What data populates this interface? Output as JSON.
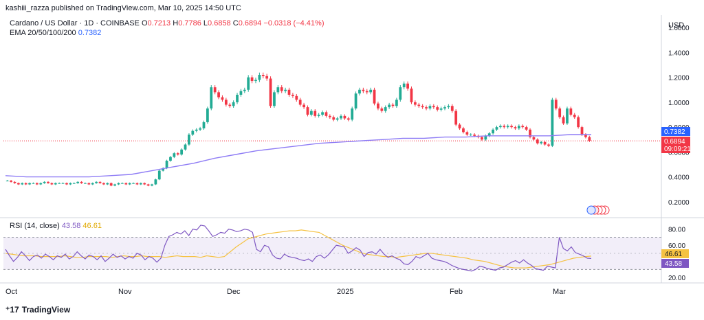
{
  "publisher": "kashiii_razza published on TradingView.com, Mar 10, 2025 14:50 UTC",
  "header": {
    "symbol": "Cardano / US Dollar · 1D · COINBASE",
    "o_label": "O",
    "o": "0.7213",
    "h_label": "H",
    "h": "0.7786",
    "l_label": "L",
    "l": "0.6858",
    "c_label": "C",
    "c": "0.6894",
    "change": "−0.0318 (−4.41%)"
  },
  "ema_legend": {
    "label": "EMA 20/50/100/200",
    "value": "0.7382"
  },
  "rsi_legend": {
    "label": "RSI (14, close)",
    "rsi": "43.58",
    "ma": "46.61"
  },
  "currency": "USD",
  "price_badges": {
    "ema": "0.7382",
    "last": "0.6894",
    "countdown": "09:09:21"
  },
  "rsi_badges": {
    "ma": "46.61",
    "rsi": "43.58"
  },
  "footer": {
    "brand": "TradingView"
  },
  "colors": {
    "up": "#22ab94",
    "down": "#f23645",
    "ema": "#8e7cf5",
    "rsi": "#7e57c2",
    "rsi_ma": "#f5c242",
    "band": "#ede7f6"
  },
  "chart_data": [
    {
      "type": "candlestick",
      "title": "Cardano / US Dollar · 1D · COINBASE",
      "ylabel": "USD",
      "y_ticks": [
        0.2,
        0.4,
        0.6,
        0.8,
        1.0,
        1.2,
        1.4,
        1.6
      ],
      "y_tick_labels": [
        "0.2000",
        "0.4000",
        "0.6000",
        "0.8000",
        "1.0000",
        "1.2000",
        "1.4000",
        "1.6000"
      ],
      "ylim": [
        0.1,
        1.7
      ],
      "x_ticks": [
        "Oct",
        "Nov",
        "Dec",
        "2025",
        "Feb",
        "Mar"
      ],
      "close_series": [
        0.37,
        0.36,
        0.35,
        0.34,
        0.35,
        0.34,
        0.35,
        0.35,
        0.34,
        0.35,
        0.36,
        0.35,
        0.34,
        0.35,
        0.35,
        0.35,
        0.34,
        0.35,
        0.35,
        0.36,
        0.35,
        0.35,
        0.34,
        0.35,
        0.36,
        0.35,
        0.34,
        0.35,
        0.33,
        0.34,
        0.35,
        0.35,
        0.34,
        0.35,
        0.35,
        0.34,
        0.35,
        0.34,
        0.33,
        0.34,
        0.38,
        0.45,
        0.47,
        0.53,
        0.56,
        0.59,
        0.58,
        0.62,
        0.66,
        0.74,
        0.77,
        0.78,
        0.79,
        0.84,
        0.95,
        1.12,
        1.08,
        1.04,
        1.02,
        0.98,
        0.97,
        1.0,
        1.06,
        1.09,
        1.1,
        1.2,
        1.17,
        1.18,
        1.22,
        1.21,
        1.19,
        0.97,
        1.08,
        1.12,
        1.09,
        1.1,
        1.06,
        1.05,
        1.02,
        0.98,
        0.96,
        0.9,
        0.93,
        0.89,
        0.9,
        0.92,
        0.89,
        0.88,
        0.86,
        0.87,
        0.89,
        0.87,
        0.86,
        0.95,
        1.07,
        1.1,
        1.09,
        1.08,
        1.1,
        0.99,
        0.95,
        0.93,
        0.96,
        0.98,
        0.97,
        1.02,
        1.12,
        1.15,
        1.11,
        1.0,
        0.98,
        0.97,
        0.96,
        0.95,
        0.97,
        0.96,
        0.94,
        0.95,
        0.96,
        0.97,
        0.93,
        0.82,
        0.79,
        0.76,
        0.74,
        0.74,
        0.73,
        0.72,
        0.7,
        0.73,
        0.75,
        0.78,
        0.8,
        0.81,
        0.8,
        0.81,
        0.8,
        0.79,
        0.81,
        0.8,
        0.78,
        0.72,
        0.7,
        0.67,
        0.68,
        0.66,
        0.65,
        1.02,
        0.95,
        0.88,
        0.83,
        0.95,
        0.9,
        0.88,
        0.8,
        0.74,
        0.72,
        0.69
      ],
      "series": [
        {
          "name": "EMA 20/50/100/200",
          "last": 0.7382,
          "values": [
            0.41,
            0.4,
            0.4,
            0.4,
            0.4,
            0.41,
            0.42,
            0.45,
            0.48,
            0.51,
            0.55,
            0.58,
            0.61,
            0.63,
            0.65,
            0.67,
            0.68,
            0.69,
            0.7,
            0.71,
            0.71,
            0.72,
            0.72,
            0.73,
            0.73,
            0.73,
            0.73,
            0.74,
            0.74
          ]
        }
      ]
    },
    {
      "type": "line",
      "title": "RSI (14, close)",
      "y_ticks": [
        20,
        40,
        60,
        80
      ],
      "y_tick_labels": [
        "20.00",
        "40.00",
        "60.00",
        "80.00"
      ],
      "ylim": [
        15,
        90
      ],
      "bands": [
        30,
        50,
        70
      ],
      "series": [
        {
          "name": "RSI",
          "last": 43.58,
          "values": [
            55,
            47,
            40,
            45,
            52,
            47,
            41,
            46,
            48,
            44,
            49,
            46,
            42,
            47,
            45,
            49,
            43,
            46,
            52,
            47,
            43,
            48,
            46,
            42,
            47,
            40,
            44,
            49,
            45,
            47,
            43,
            46,
            44,
            50,
            48,
            42,
            46,
            44,
            39,
            44,
            60,
            71,
            73,
            76,
            74,
            78,
            72,
            80,
            79,
            85,
            84,
            78,
            71,
            73,
            76,
            75,
            80,
            79,
            77,
            78,
            80,
            79,
            76,
            55,
            52,
            60,
            58,
            48,
            44,
            43,
            49,
            46,
            45,
            44,
            42,
            41,
            43,
            40,
            46,
            48,
            44,
            48,
            54,
            60,
            59,
            58,
            50,
            53,
            57,
            54,
            46,
            51,
            52,
            49,
            55,
            49,
            45,
            47,
            44,
            42,
            37,
            36,
            40,
            46,
            44,
            47,
            50,
            44,
            42,
            41,
            40,
            38,
            35,
            33,
            31,
            30,
            29,
            28,
            30,
            34,
            33,
            31,
            30,
            29,
            32,
            33,
            36,
            39,
            41,
            38,
            42,
            38,
            35,
            31,
            30,
            29,
            34,
            33,
            32,
            70,
            56,
            53,
            58,
            51,
            49,
            47,
            44,
            43.6
          ]
        },
        {
          "name": "RSI MA",
          "last": 46.61,
          "values": [
            50,
            49,
            48,
            47,
            47,
            47,
            46,
            46,
            46,
            46,
            47,
            46,
            45,
            45,
            46,
            46,
            46,
            46,
            45,
            46,
            47,
            46,
            46,
            47,
            46,
            46,
            46,
            45,
            46,
            47,
            46,
            46,
            46,
            45,
            47,
            46,
            45,
            46,
            52,
            58,
            63,
            68,
            70,
            72,
            74,
            75,
            76,
            77,
            78,
            78,
            79,
            78,
            77,
            76,
            72,
            68,
            64,
            60,
            57,
            54,
            51,
            49,
            48,
            47,
            46,
            46,
            45,
            46,
            47,
            48,
            49,
            50,
            50,
            49,
            48,
            47,
            46,
            45,
            44,
            42,
            41,
            40,
            38,
            36,
            34,
            33,
            32,
            32,
            32,
            33,
            34,
            35,
            36,
            38,
            40,
            42,
            44,
            45,
            46,
            46.61
          ]
        }
      ]
    }
  ]
}
